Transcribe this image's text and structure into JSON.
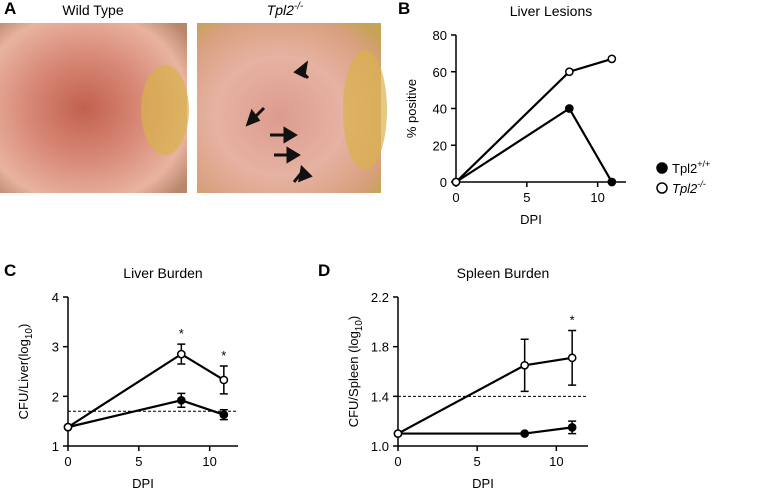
{
  "photos": {
    "panel_label": "A",
    "labels": [
      {
        "text": "Wild Type"
      },
      {
        "text": "Tpl2",
        "superscript": "-/-"
      }
    ]
  },
  "chart_data": [
    {
      "type": "line",
      "panel_label": "B",
      "title": "Liver Lesions",
      "x_label": "DPI",
      "y_label": "% positive",
      "x": [
        0,
        8,
        11
      ],
      "xlim": [
        0,
        12
      ],
      "xticks": [
        0,
        5,
        10
      ],
      "ylim": [
        0,
        80
      ],
      "yticks": [
        0,
        20,
        40,
        60,
        80
      ],
      "legend": true,
      "series": [
        {
          "name": "Tpl2",
          "name_superscript": "+/+",
          "color": "#000000",
          "marker_fill": "#000000",
          "values": [
            0,
            40,
            0
          ]
        },
        {
          "name": "Tpl2",
          "name_superscript": "-/-",
          "italic": true,
          "color": "#000000",
          "marker_fill": "#ffffff",
          "values": [
            0,
            60,
            67
          ]
        }
      ]
    },
    {
      "type": "line",
      "panel_label": "C",
      "title": "Liver Burden",
      "x_label": "DPI",
      "y_label": "CFU/Liver(log",
      "y_label_subscript": "10",
      "y_label_end": ")",
      "x": [
        0,
        8,
        11
      ],
      "xlim": [
        0,
        12
      ],
      "xticks": [
        0,
        5,
        10
      ],
      "ylim": [
        1,
        4
      ],
      "yticks": [
        1,
        2,
        3,
        4
      ],
      "reference_line": 1.7,
      "series": [
        {
          "name": "Tpl2",
          "name_superscript": "+/+",
          "color": "#000000",
          "marker_fill": "#000000",
          "values": [
            1.38,
            1.92,
            1.63
          ],
          "errors": [
            0,
            0.14,
            0.1
          ]
        },
        {
          "name": "Tpl2",
          "name_superscript": "-/-",
          "color": "#000000",
          "marker_fill": "#ffffff",
          "values": [
            1.38,
            2.85,
            2.33
          ],
          "errors": [
            0,
            0.2,
            0.28
          ]
        }
      ],
      "annotations": [
        {
          "text": "*",
          "x": 8
        },
        {
          "text": "*",
          "x": 11
        }
      ]
    },
    {
      "type": "line",
      "panel_label": "D",
      "title": "Spleen Burden",
      "x_label": "DPI",
      "y_label": "CFU/Spleen (log",
      "y_label_subscript": "10",
      "y_label_end": ")",
      "x": [
        0,
        8,
        11
      ],
      "xlim": [
        0,
        12
      ],
      "xticks": [
        0,
        5,
        10
      ],
      "ylim": [
        1,
        2.2
      ],
      "yticks": [
        {
          "value": 1,
          "label": "1.0"
        },
        1.4,
        1.8,
        2.2
      ],
      "reference_line": 1.4,
      "series": [
        {
          "name": "Tpl2",
          "name_superscript": "+/+",
          "color": "#000000",
          "marker_fill": "#000000",
          "values": [
            1.1,
            1.1,
            1.15
          ],
          "errors": [
            0,
            0,
            0.05
          ]
        },
        {
          "name": "Tpl2",
          "name_superscript": "-/-",
          "color": "#000000",
          "marker_fill": "#ffffff",
          "values": [
            1.1,
            1.65,
            1.71
          ],
          "errors": [
            0,
            0.21,
            0.22
          ]
        }
      ],
      "annotations": [
        {
          "text": "*",
          "x": 11
        }
      ]
    }
  ]
}
